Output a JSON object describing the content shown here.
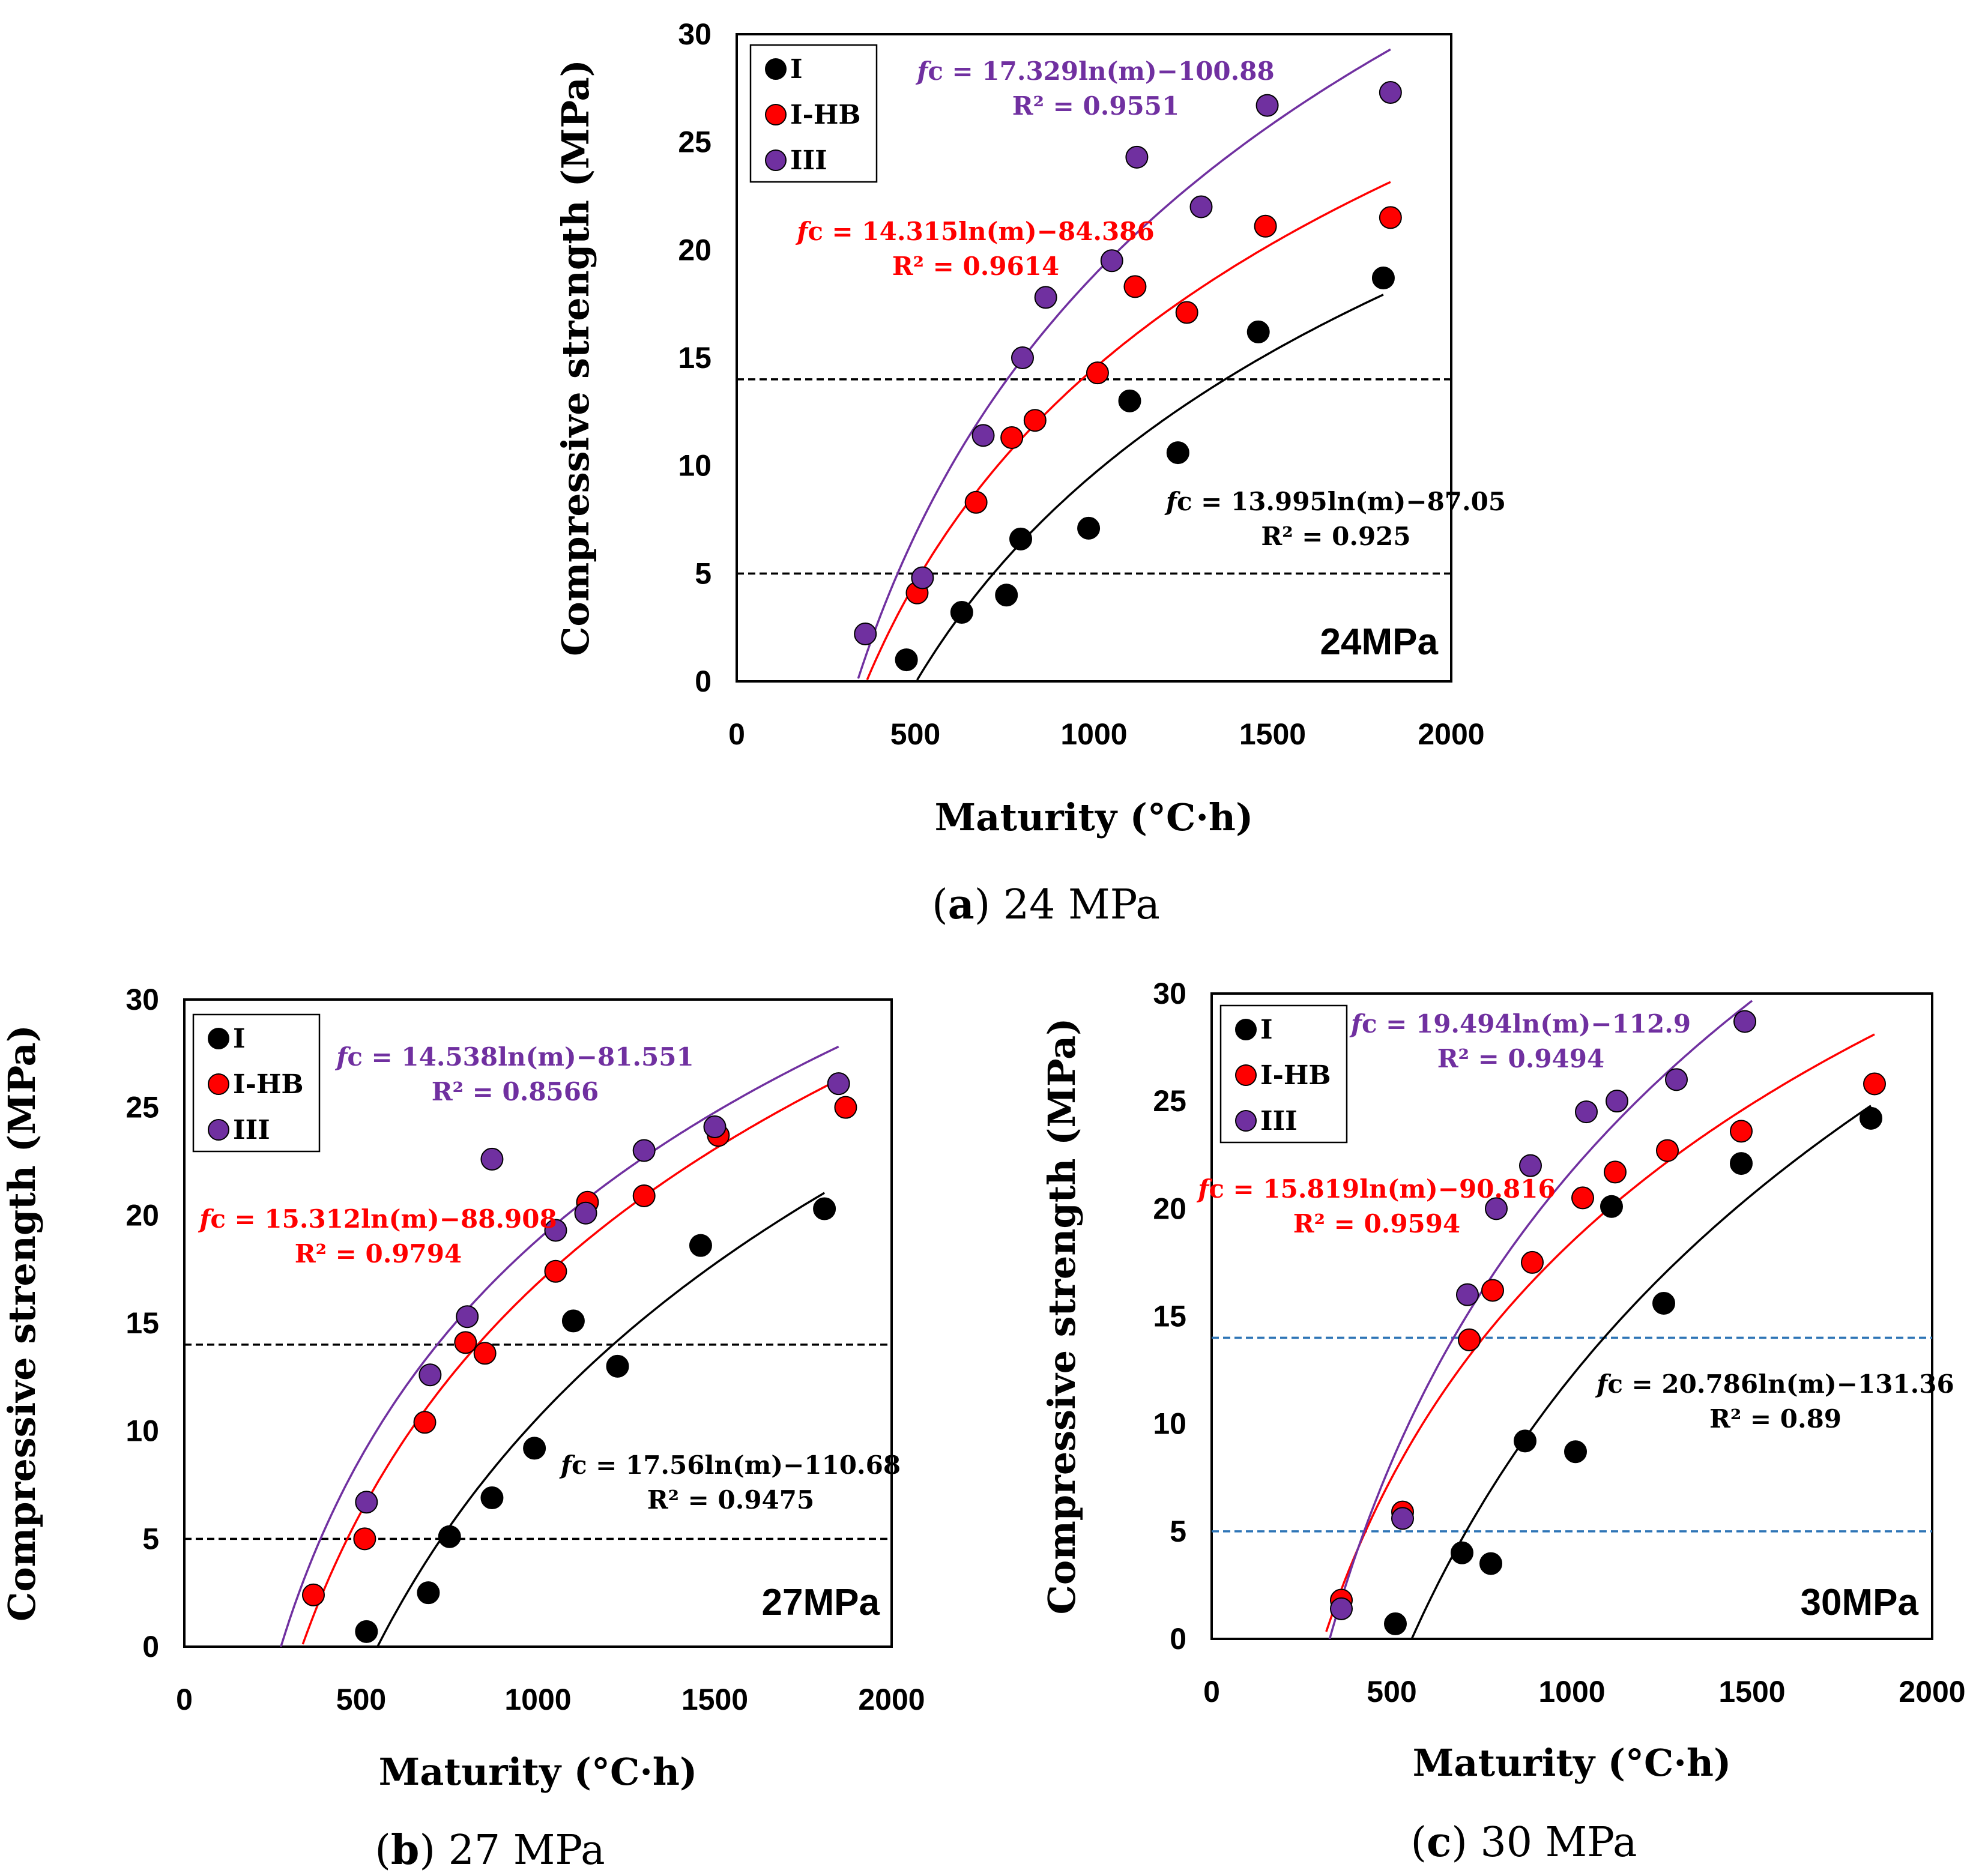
{
  "colors": {
    "I": "#000000",
    "I-HB": "#ff0000",
    "III": "#7030a0",
    "dash_default": "#000000",
    "dash_blue": "#2e75b6"
  },
  "chart_data": [
    {
      "type": "scatter",
      "panel": "a",
      "caption_letter": "a",
      "caption_text": "24 MPa",
      "corner_label": "24MPa",
      "xlabel": "Maturity (°C·h)",
      "ylabel": "Compressive strength (MPa)",
      "xlim": [
        0,
        2000
      ],
      "ylim": [
        0,
        30
      ],
      "xticks": [
        "0",
        "500",
        "1000",
        "1500",
        "2000"
      ],
      "yticks": [
        "0",
        "5",
        "10",
        "15",
        "20",
        "25",
        "30"
      ],
      "thresholds": [
        5,
        14
      ],
      "dash_color": "dash_default",
      "legend": [
        "I",
        "I-HB",
        "III"
      ],
      "series": [
        {
          "name": "I",
          "points": [
            [
              475,
              1.0
            ],
            [
              630,
              3.2
            ],
            [
              755,
              4.0
            ],
            [
              795,
              6.6
            ],
            [
              985,
              7.1
            ],
            [
              1100,
              13.0
            ],
            [
              1235,
              10.6
            ],
            [
              1460,
              16.2
            ],
            [
              1810,
              18.7
            ]
          ],
          "fit": {
            "a": 13.995,
            "b": -87.05,
            "x0": 505,
            "x1": 1810
          },
          "equation": "c = 13.995ln(m)−87.05",
          "r2": "R² = 0.925"
        },
        {
          "name": "I-HB",
          "points": [
            [
              505,
              4.1
            ],
            [
              670,
              8.3
            ],
            [
              770,
              11.3
            ],
            [
              835,
              12.1
            ],
            [
              1010,
              14.3
            ],
            [
              1115,
              18.3
            ],
            [
              1260,
              17.1
            ],
            [
              1480,
              21.1
            ],
            [
              1830,
              21.5
            ]
          ],
          "fit": {
            "a": 14.315,
            "b": -84.386,
            "x0": 365,
            "x1": 1830
          },
          "equation": "c = 14.315ln(m)−84.386",
          "r2": "R² = 0.9614"
        },
        {
          "name": "III",
          "points": [
            [
              360,
              2.2
            ],
            [
              520,
              4.8
            ],
            [
              690,
              11.4
            ],
            [
              800,
              15.0
            ],
            [
              865,
              17.8
            ],
            [
              1050,
              19.5
            ],
            [
              1120,
              24.3
            ],
            [
              1300,
              22.0
            ],
            [
              1485,
              26.7
            ],
            [
              1830,
              27.3
            ]
          ],
          "fit": {
            "a": 17.329,
            "b": -100.88,
            "x0": 340,
            "x1": 1830
          },
          "equation": "c = 17.329ln(m)−100.88",
          "r2": "R² = 0.9551"
        }
      ]
    },
    {
      "type": "scatter",
      "panel": "b",
      "caption_letter": "b",
      "caption_text": "27 MPa",
      "corner_label": "27MPa",
      "xlabel": "Maturity (°C·h)",
      "ylabel": "Compressive strength (MPa)",
      "xlim": [
        0,
        2000
      ],
      "ylim": [
        0,
        30
      ],
      "xticks": [
        "0",
        "500",
        "1000",
        "1500",
        "2000"
      ],
      "yticks": [
        "0",
        "5",
        "10",
        "15",
        "20",
        "25",
        "30"
      ],
      "thresholds": [
        5,
        14
      ],
      "dash_color": "dash_default",
      "legend": [
        "I",
        "I-HB",
        "III"
      ],
      "series": [
        {
          "name": "I",
          "points": [
            [
              515,
              0.7
            ],
            [
              690,
              2.5
            ],
            [
              750,
              5.1
            ],
            [
              870,
              6.9
            ],
            [
              990,
              9.2
            ],
            [
              1100,
              15.1
            ],
            [
              1225,
              13.0
            ],
            [
              1460,
              18.6
            ],
            [
              1810,
              20.3
            ]
          ],
          "fit": {
            "a": 17.56,
            "b": -110.68,
            "x0": 545,
            "x1": 1810
          },
          "equation": "c = 17.56ln(m)−110.68",
          "r2": "R² = 0.9475"
        },
        {
          "name": "I-HB",
          "points": [
            [
              365,
              2.4
            ],
            [
              510,
              5.0
            ],
            [
              680,
              10.4
            ],
            [
              795,
              14.1
            ],
            [
              850,
              13.6
            ],
            [
              1050,
              17.4
            ],
            [
              1140,
              20.6
            ],
            [
              1300,
              20.9
            ],
            [
              1510,
              23.7
            ],
            [
              1870,
              25.0
            ]
          ],
          "fit": {
            "a": 15.312,
            "b": -88.908,
            "x0": 335,
            "x1": 1850
          },
          "equation": "c = 15.312ln(m)−88.908",
          "r2": "R² = 0.9794"
        },
        {
          "name": "III",
          "points": [
            [
              515,
              6.7
            ],
            [
              695,
              12.6
            ],
            [
              800,
              15.3
            ],
            [
              870,
              22.6
            ],
            [
              1050,
              19.3
            ],
            [
              1135,
              20.1
            ],
            [
              1300,
              23.0
            ],
            [
              1500,
              24.1
            ],
            [
              1850,
              26.1
            ]
          ],
          "fit": {
            "a": 14.538,
            "b": -81.551,
            "x0": 272,
            "x1": 1850
          },
          "equation": "c = 14.538ln(m)−81.551",
          "r2": "R² = 0.8566"
        }
      ]
    },
    {
      "type": "scatter",
      "panel": "c",
      "caption_letter": "c",
      "caption_text": "30 MPa",
      "corner_label": "30MPa",
      "xlabel": "Maturity (°C·h)",
      "ylabel": "Compressive strength (MPa)",
      "xlim": [
        0,
        2000
      ],
      "ylim": [
        0,
        30
      ],
      "xticks": [
        "0",
        "500",
        "1000",
        "1500",
        "2000"
      ],
      "yticks": [
        "0",
        "5",
        "10",
        "15",
        "20",
        "25",
        "30"
      ],
      "thresholds": [
        5,
        14
      ],
      "dash_color": "dash_blue",
      "legend": [
        "I",
        "I-HB",
        "III"
      ],
      "series": [
        {
          "name": "I",
          "points": [
            [
              510,
              0.7
            ],
            [
              695,
              4.0
            ],
            [
              775,
              3.5
            ],
            [
              870,
              9.2
            ],
            [
              1010,
              8.7
            ],
            [
              1110,
              20.1
            ],
            [
              1255,
              15.6
            ],
            [
              1470,
              22.1
            ],
            [
              1830,
              24.2
            ]
          ],
          "fit": {
            "a": 20.786,
            "b": -131.36,
            "x0": 555,
            "x1": 1830
          },
          "equation": "c = 20.786ln(m)−131.36",
          "r2": "R² = 0.89"
        },
        {
          "name": "I-HB",
          "points": [
            [
              360,
              1.8
            ],
            [
              530,
              5.9
            ],
            [
              715,
              13.9
            ],
            [
              780,
              16.2
            ],
            [
              890,
              17.5
            ],
            [
              1030,
              20.5
            ],
            [
              1120,
              21.7
            ],
            [
              1265,
              22.7
            ],
            [
              1470,
              23.6
            ],
            [
              1840,
              25.8
            ]
          ],
          "fit": {
            "a": 15.819,
            "b": -90.816,
            "x0": 318,
            "x1": 1840
          },
          "equation": "c = 15.819ln(m)−90.816",
          "r2": "R² = 0.9594"
        },
        {
          "name": "III",
          "points": [
            [
              360,
              1.4
            ],
            [
              530,
              5.6
            ],
            [
              710,
              16.0
            ],
            [
              790,
              20.0
            ],
            [
              885,
              22.0
            ],
            [
              1040,
              24.5
            ],
            [
              1125,
              25.0
            ],
            [
              1290,
              26.0
            ],
            [
              1480,
              28.7
            ]
          ],
          "fit": {
            "a": 19.494,
            "b": -112.9,
            "x0": 325,
            "x1": 1500
          },
          "equation": "c = 19.494ln(m)−112.9",
          "r2": "R² = 0.9494"
        }
      ]
    }
  ]
}
